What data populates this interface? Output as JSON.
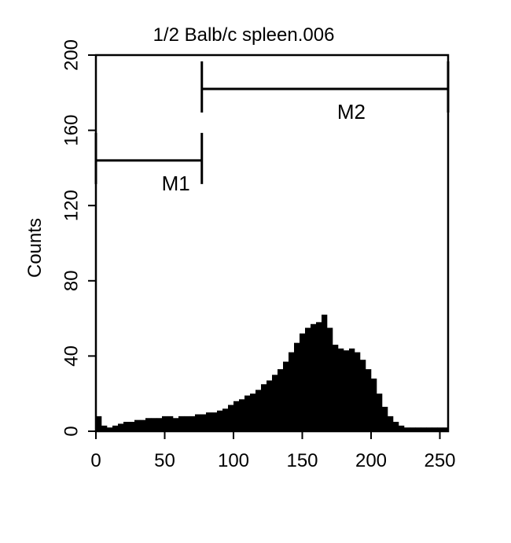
{
  "chart_data": {
    "type": "histogram",
    "title": "1/2 Balb/c spleen.006",
    "y_label": "Counts",
    "color": "#000000",
    "bins": [
      0,
      4,
      8,
      12,
      16,
      20,
      24,
      28,
      32,
      36,
      40,
      44,
      48,
      52,
      56,
      60,
      64,
      68,
      72,
      76,
      80,
      84,
      88,
      92,
      96,
      100,
      104,
      108,
      112,
      116,
      120,
      124,
      128,
      132,
      136,
      140,
      144,
      148,
      152,
      156,
      160,
      164,
      168,
      172,
      176,
      180,
      184,
      188,
      192,
      196,
      200,
      204,
      208,
      212,
      216,
      220,
      224,
      228,
      232,
      236,
      240,
      244,
      248,
      252,
      256
    ],
    "values": [
      8,
      3,
      2,
      3,
      4,
      5,
      5,
      6,
      6,
      7,
      7,
      7,
      8,
      8,
      7,
      8,
      8,
      8,
      9,
      9,
      10,
      10,
      11,
      12,
      14,
      16,
      17,
      19,
      20,
      22,
      25,
      27,
      30,
      33,
      37,
      42,
      47,
      52,
      55,
      57,
      58,
      62,
      55,
      46,
      44,
      43,
      44,
      42,
      38,
      33,
      28,
      20,
      13,
      8,
      5,
      3,
      2,
      2,
      2,
      2,
      2,
      2,
      2,
      2
    ],
    "xlim": [
      0,
      256
    ],
    "ylim": [
      0,
      200
    ],
    "xticks": [
      0,
      50,
      100,
      150,
      200,
      250
    ],
    "yticks": [
      0,
      40,
      80,
      120,
      160,
      200
    ],
    "markers": [
      {
        "label": "M1",
        "range": [
          0,
          77
        ],
        "level": 144
      },
      {
        "label": "M2",
        "range": [
          77,
          256
        ],
        "level": 182
      }
    ]
  }
}
